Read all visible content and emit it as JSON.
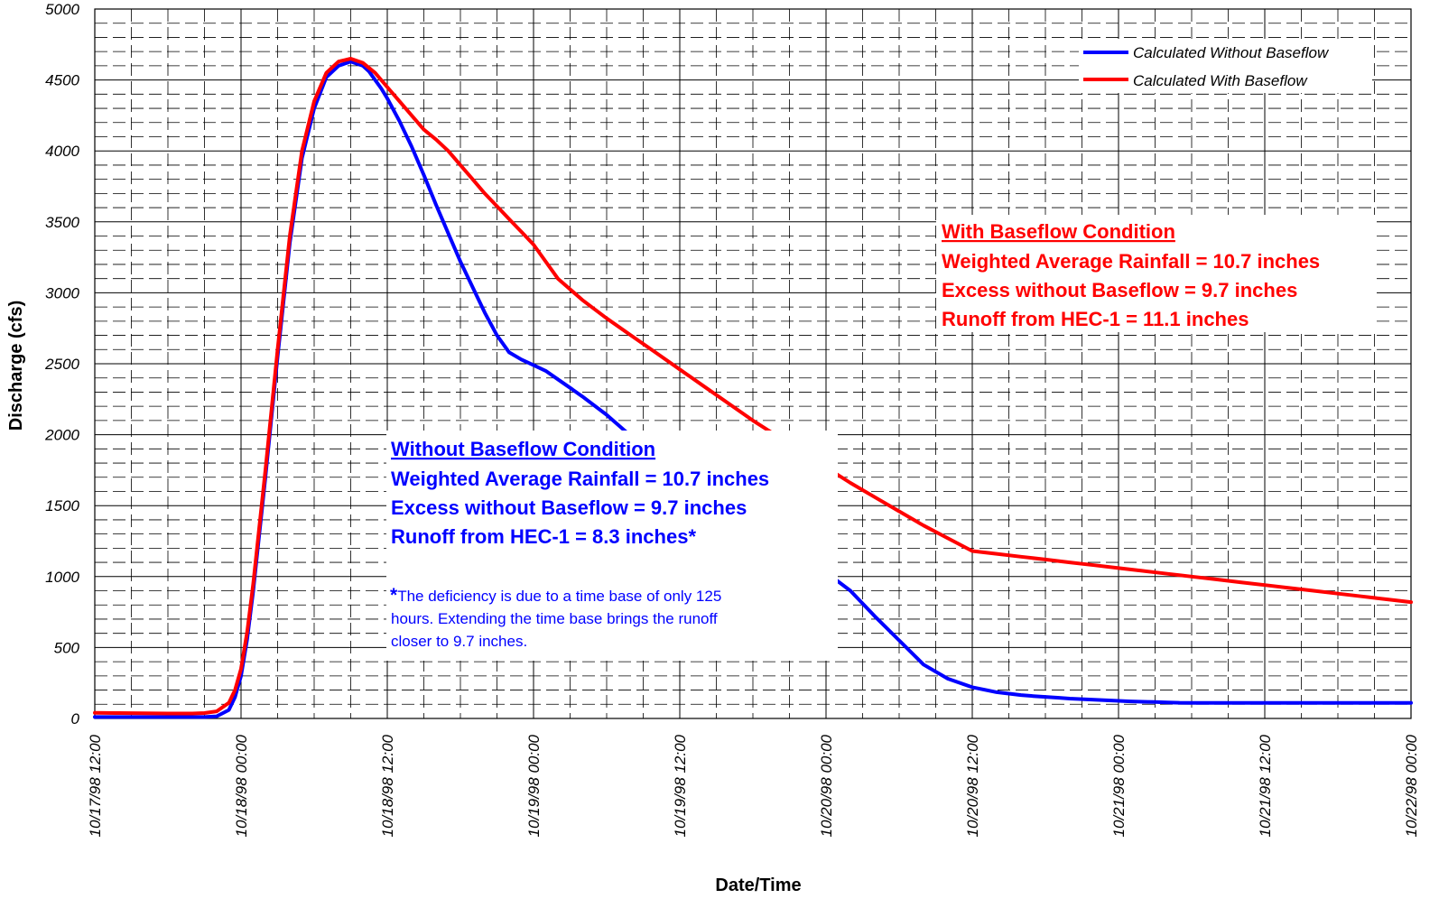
{
  "chart_data": {
    "type": "line",
    "xlabel": "Date/Time",
    "ylabel": "Discharge (cfs)",
    "x_ticks": [
      "10/17/98 12:00",
      "10/18/98 00:00",
      "10/18/98 12:00",
      "10/19/98 00:00",
      "10/19/98 12:00",
      "10/20/98 00:00",
      "10/20/98 12:00",
      "10/21/98 00:00",
      "10/21/98 12:00",
      "10/22/98 00:00"
    ],
    "xlim_hours": [
      0,
      108
    ],
    "ylim": [
      0,
      5000
    ],
    "y_ticks": [
      0,
      500,
      1000,
      1500,
      2000,
      2500,
      3000,
      3500,
      4000,
      4500,
      5000
    ],
    "grid": true,
    "legend_position": "top-right",
    "series": [
      {
        "name": "Calculated Without Baseflow",
        "color": "#0000ff",
        "x_hours": [
          0,
          2,
          4,
          6,
          8,
          9,
          10,
          11,
          11.5,
          12,
          12.5,
          13,
          14,
          15,
          16,
          17,
          18,
          19,
          20,
          21,
          22,
          22.5,
          23,
          23.5,
          24,
          25,
          26,
          27,
          28,
          29,
          30,
          31,
          32,
          33,
          34,
          35,
          36,
          37,
          38,
          39,
          40,
          42,
          44,
          46,
          48,
          50,
          52,
          54,
          56,
          58,
          60,
          62,
          64,
          66,
          68,
          70,
          72,
          74,
          76,
          77,
          78,
          79,
          80,
          81,
          82,
          83,
          84,
          85,
          86,
          87,
          88,
          89,
          90,
          92,
          94,
          96,
          98,
          100,
          102,
          104,
          106,
          108
        ],
        "values": [
          10,
          10,
          10,
          10,
          10,
          10,
          15,
          60,
          150,
          300,
          560,
          900,
          1700,
          2550,
          3350,
          3950,
          4300,
          4520,
          4600,
          4630,
          4600,
          4560,
          4500,
          4440,
          4370,
          4210,
          4030,
          3830,
          3620,
          3420,
          3220,
          3040,
          2860,
          2700,
          2580,
          2530,
          2490,
          2450,
          2390,
          2330,
          2270,
          2140,
          1990,
          1840,
          1700,
          1560,
          1430,
          1310,
          1200,
          1110,
          1030,
          900,
          720,
          550,
          380,
          280,
          220,
          185,
          165,
          158,
          152,
          146,
          140,
          136,
          132,
          128,
          124,
          120,
          118,
          116,
          113,
          111,
          110,
          110,
          110,
          110,
          110,
          110,
          110,
          110,
          110,
          110
        ],
        "values_override": [
          10,
          10,
          10,
          10,
          10,
          10,
          15,
          60,
          150,
          300,
          560,
          900,
          1700,
          2550,
          3350,
          3950,
          4300,
          4520,
          4600,
          4630,
          4600,
          4560,
          4500,
          4440,
          4370,
          4210,
          4030,
          3830,
          3620,
          3420,
          3220,
          3040,
          2860,
          2700,
          2580,
          2530,
          2490,
          2450,
          2390,
          2330,
          2270,
          2140,
          1990,
          1840,
          1700,
          1560,
          1430,
          1310,
          1200,
          1110,
          1030,
          900,
          720,
          550,
          380,
          280,
          220,
          185,
          165,
          158,
          152,
          146,
          140,
          136,
          132,
          128,
          124,
          120,
          118,
          116,
          113,
          111,
          110,
          110,
          110,
          110,
          110,
          110,
          110,
          110,
          110,
          110
        ]
      },
      {
        "name": "Calculated With Baseflow",
        "color": "#ff0000",
        "x_hours": [
          0,
          2,
          4,
          6,
          8,
          9,
          10,
          11,
          11.5,
          12,
          12.5,
          13,
          14,
          15,
          16,
          17,
          18,
          19,
          20,
          21,
          22,
          23,
          24,
          25,
          26,
          27,
          28,
          29,
          30,
          31,
          32,
          33,
          34,
          35,
          36,
          38,
          40,
          42,
          44,
          46,
          48,
          50,
          52,
          54,
          56,
          58,
          60,
          62,
          64,
          66,
          68,
          70,
          72,
          74,
          76,
          78,
          80,
          82,
          84,
          86,
          88,
          90,
          92,
          94,
          96,
          98,
          100,
          102,
          104,
          106,
          108
        ],
        "values": [
          40,
          38,
          36,
          35,
          35,
          38,
          50,
          110,
          200,
          350,
          610,
          950,
          1750,
          2600,
          3400,
          4000,
          4350,
          4550,
          4630,
          4650,
          4620,
          4550,
          4450,
          4350,
          4250,
          4150,
          4080,
          4000,
          3900,
          3800,
          3700,
          3610,
          3520,
          3430,
          3340,
          3100,
          2950,
          2820,
          2700,
          2580,
          2460,
          2340,
          2220,
          2100,
          1990,
          1880,
          1770,
          1660,
          1560,
          1460,
          1360,
          1270,
          1180,
          1160,
          1140,
          1120,
          1100,
          1080,
          1060,
          1040,
          1020,
          1000,
          980,
          960,
          940,
          920,
          900,
          880,
          860,
          840,
          820
        ]
      }
    ],
    "annotations": {
      "with_baseflow": {
        "title": "With Baseflow Condition",
        "lines": [
          "Weighted Average Rainfall = 10.7 inches",
          "Excess without Baseflow = 9.7 inches",
          "Runoff from HEC-1 = 11.1 inches"
        ]
      },
      "without_baseflow": {
        "title": "Without Baseflow Condition",
        "lines": [
          "Weighted Average Rainfall = 10.7 inches",
          "Excess without Baseflow = 9.7 inches",
          "Runoff from HEC-1 = 8.3 inches*"
        ],
        "footnote_mark": "*",
        "footnote_lines": [
          "The deficiency is due to a time base of only 125",
          "hours.  Extending the time base brings the runoff",
          "closer to 9.7 inches."
        ]
      }
    }
  }
}
